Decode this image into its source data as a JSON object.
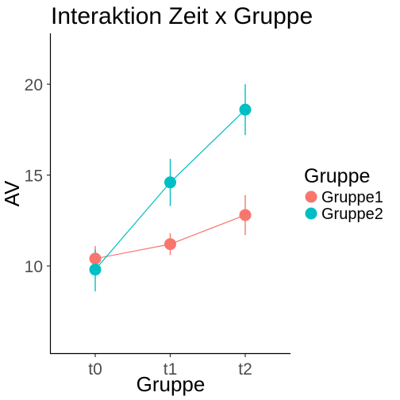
{
  "chart_data": {
    "type": "line",
    "title": "Interaktion Zeit x Gruppe",
    "xlabel": "Gruppe",
    "ylabel": "AV",
    "categories": [
      "t0",
      "t1",
      "t2"
    ],
    "ylim": [
      5.2,
      22.8
    ],
    "yticks": [
      10,
      15,
      20
    ],
    "grid": false,
    "legend": {
      "title": "Gruppe",
      "position": "right"
    },
    "series": [
      {
        "name": "Gruppe1",
        "color": "#F8766D",
        "values": [
          10.4,
          11.2,
          12.8
        ],
        "err_low": [
          9.7,
          10.6,
          11.7
        ],
        "err_high": [
          11.1,
          11.8,
          13.9
        ]
      },
      {
        "name": "Gruppe2",
        "color": "#00BFC4",
        "values": [
          9.8,
          14.6,
          18.6
        ],
        "err_low": [
          8.6,
          13.3,
          17.2
        ],
        "err_high": [
          10.9,
          15.9,
          20.0
        ]
      }
    ]
  }
}
